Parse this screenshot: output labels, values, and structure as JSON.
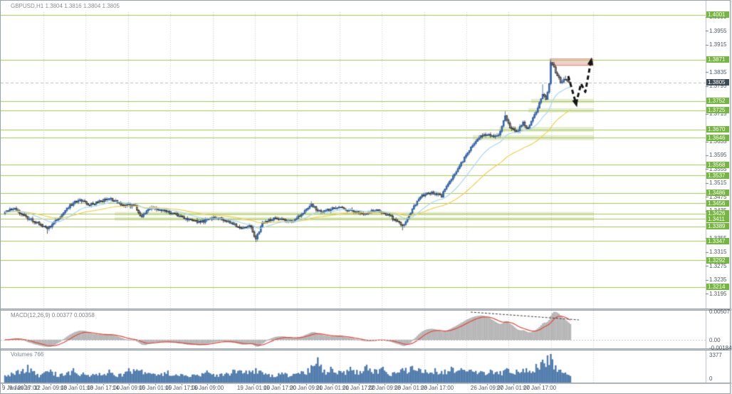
{
  "app": {
    "title_line": "GBPUSD,H1 1.3804 1.3816 1.3804 1.3805"
  },
  "colors": {
    "background": "#ffffff",
    "grid": "#c9cdd3",
    "level_line": "#a6c455",
    "band_fill": "rgba(166,196,85,0.30)",
    "badge_green": "#74b63e",
    "badge_dark": "#3d4a56",
    "axis_text": "#4e5a66",
    "bull": "#3e72bc",
    "bull_edge": "#2c5a9c",
    "bear": "#9a9a9a",
    "bear_edge": "#2e2e2e",
    "ma_fast": "#a9d7f2",
    "ma_slow": "#f0d050",
    "macd_hist": "#c7c7c7",
    "macd_hist_edge": "#8e8e8e",
    "macd_signal": "#e4463c",
    "volume": "#4577ad",
    "volume_edge": "#2f5f94",
    "zone_fill": "rgba(222,141,129,0.42)",
    "zone_edge": "rgba(196,108,96,0.60)",
    "arrow": "#151515",
    "price_dash": "#b6bcc2",
    "axis_sep": "#b8bec4"
  },
  "chart_data": {
    "type": "candlestick",
    "symbol": "GBPUSD",
    "timeframe": "H1",
    "title": "GBPUSD,H1",
    "ohlc": {
      "open": 1.3804,
      "high": 1.3816,
      "low": 1.3804,
      "close": 1.3805
    },
    "current_price": 1.3805,
    "ylim": [
      1.3152,
      1.4013
    ],
    "bar_count": 348,
    "price_path": [
      [
        0,
        1.343
      ],
      [
        6,
        1.3443
      ],
      [
        12,
        1.3418
      ],
      [
        20,
        1.34
      ],
      [
        26,
        1.3382
      ],
      [
        32,
        1.3408
      ],
      [
        40,
        1.345
      ],
      [
        46,
        1.3468
      ],
      [
        52,
        1.3452
      ],
      [
        58,
        1.3462
      ],
      [
        64,
        1.347
      ],
      [
        72,
        1.3452
      ],
      [
        80,
        1.3448
      ],
      [
        84,
        1.3415
      ],
      [
        88,
        1.3443
      ],
      [
        100,
        1.3432
      ],
      [
        112,
        1.341
      ],
      [
        120,
        1.3402
      ],
      [
        130,
        1.3416
      ],
      [
        138,
        1.34
      ],
      [
        146,
        1.3382
      ],
      [
        150,
        1.3395
      ],
      [
        154,
        1.3352
      ],
      [
        158,
        1.3398
      ],
      [
        166,
        1.3415
      ],
      [
        176,
        1.3402
      ],
      [
        188,
        1.345
      ],
      [
        194,
        1.343
      ],
      [
        204,
        1.3445
      ],
      [
        214,
        1.3432
      ],
      [
        222,
        1.3428
      ],
      [
        228,
        1.3438
      ],
      [
        236,
        1.342
      ],
      [
        244,
        1.3392
      ],
      [
        248,
        1.3418
      ],
      [
        252,
        1.3455
      ],
      [
        255,
        1.3477
      ],
      [
        262,
        1.3487
      ],
      [
        268,
        1.3477
      ],
      [
        272,
        1.3515
      ],
      [
        277,
        1.3545
      ],
      [
        282,
        1.3588
      ],
      [
        286,
        1.362
      ],
      [
        291,
        1.3648
      ],
      [
        296,
        1.3655
      ],
      [
        301,
        1.3648
      ],
      [
        304,
        1.3662
      ],
      [
        307,
        1.3712
      ],
      [
        310,
        1.3675
      ],
      [
        314,
        1.3662
      ],
      [
        318,
        1.3688
      ],
      [
        321,
        1.3672
      ],
      [
        324,
        1.37
      ],
      [
        327,
        1.3732
      ],
      [
        330,
        1.3772
      ],
      [
        332,
        1.3758
      ],
      [
        334,
        1.38
      ],
      [
        335,
        1.3865
      ],
      [
        337,
        1.3848
      ],
      [
        339,
        1.3825
      ],
      [
        341,
        1.3808
      ],
      [
        344,
        1.3815
      ],
      [
        347,
        1.3805
      ]
    ],
    "wick_events": [
      {
        "bar": 26,
        "low": 1.3368
      },
      {
        "bar": 154,
        "low": 1.3344
      },
      {
        "bar": 188,
        "high": 1.3462
      },
      {
        "bar": 244,
        "low": 1.3378
      },
      {
        "bar": 307,
        "high": 1.3722
      },
      {
        "bar": 330,
        "high": 1.38
      },
      {
        "bar": 335,
        "high": 1.3871
      },
      {
        "bar": 344,
        "high": 1.3825
      }
    ],
    "levels_badged": [
      1.4001,
      1.3871,
      1.3752,
      1.3725,
      1.367,
      1.3646,
      1.3568,
      1.3537,
      1.3486,
      1.3456,
      1.3426,
      1.3411,
      1.3389,
      1.3347,
      1.3292,
      1.3214
    ],
    "axis_ticks": [
      1.3995,
      1.3955,
      1.3915,
      1.3835,
      1.3795,
      1.3715,
      1.3635,
      1.3595,
      1.3555,
      1.3515,
      1.3475,
      1.3435,
      1.3355,
      1.3315,
      1.3275,
      1.3235,
      1.3195
    ],
    "support_bands": [
      {
        "price": 1.3752,
        "x1": 745,
        "x2": 833,
        "h": 6
      },
      {
        "price": 1.3725,
        "x1": 741,
        "x2": 833,
        "h": 6
      },
      {
        "price": 1.367,
        "x1": 700,
        "x2": 833,
        "h": 7
      },
      {
        "price": 1.3646,
        "x1": 663,
        "x2": 833,
        "h": 7
      },
      {
        "price": 1.3426,
        "x1": 160,
        "x2": 833,
        "h": 5
      },
      {
        "price": 1.3411,
        "x1": 160,
        "x2": 833,
        "h": 5
      }
    ],
    "resistance_zone": {
      "x1": 771,
      "x2": 832,
      "price_top": 1.3874,
      "price_bottom": 1.3853
    },
    "forecast_arrow": [
      [
        797,
        1.3824
      ],
      [
        808,
        1.3744
      ],
      [
        815,
        1.3802
      ],
      [
        821,
        1.3778
      ],
      [
        829,
        1.3868
      ]
    ],
    "ma_periods": {
      "fast": 21,
      "slow": 55
    },
    "time_axis": [
      {
        "x": 2,
        "label": "9 Jan 2026"
      },
      {
        "x": 33,
        "label": "9 Jan 17:00"
      },
      {
        "x": 70,
        "label": "12 Jan 09:00"
      },
      {
        "x": 107,
        "label": "13 Jan 01:00"
      },
      {
        "x": 144,
        "label": "13 Jan 17:00"
      },
      {
        "x": 180,
        "label": "14 Jan 09:00"
      },
      {
        "x": 217,
        "label": "15 Jan 01:00"
      },
      {
        "x": 254,
        "label": "15 Jan 17:00"
      },
      {
        "x": 290,
        "label": "16 Jan 09:00"
      },
      {
        "x": 355,
        "label": "19 Jan 01:00"
      },
      {
        "x": 392,
        "label": "19 Jan 17:00"
      },
      {
        "x": 429,
        "label": "20 Jan 09:00"
      },
      {
        "x": 466,
        "label": "21 Jan 01:00"
      },
      {
        "x": 503,
        "label": "21 Jan 17:00"
      },
      {
        "x": 539,
        "label": "22 Jan 09:00"
      },
      {
        "x": 576,
        "label": "23 Jan 01:00"
      },
      {
        "x": 613,
        "label": "23 Jan 17:00"
      },
      {
        "x": 683,
        "label": "26 Jan 09:00"
      },
      {
        "x": 720,
        "label": "27 Jan 01:00"
      },
      {
        "x": 757,
        "label": "27 Jan 17:00"
      }
    ],
    "macd": {
      "label": "MACD(12,26,9) 0.00377 0.00358",
      "main_value": 0.00377,
      "signal_value": 0.00358,
      "axis_labels": {
        "upper": "0.00507",
        "zero": "0.00",
        "lower": "-0.00184"
      },
      "upper_value": 0.00507,
      "lower_value": -0.00184,
      "divergence_line": {
        "x1": 660,
        "y1": 437,
        "x2": 812,
        "y2": 448
      }
    },
    "volumes": {
      "label": "Volumes 766",
      "current": 766,
      "scale_max": 3377,
      "axis_labels": {
        "max": "3377",
        "min": "0"
      },
      "envelope": [
        [
          0,
          0.25
        ],
        [
          14,
          0.62
        ],
        [
          20,
          0.3
        ],
        [
          28,
          0.45
        ],
        [
          34,
          0.3
        ],
        [
          42,
          0.5
        ],
        [
          48,
          0.35
        ],
        [
          56,
          0.3
        ],
        [
          64,
          0.45
        ],
        [
          70,
          0.3
        ],
        [
          76,
          0.5
        ],
        [
          84,
          0.45
        ],
        [
          92,
          0.3
        ],
        [
          100,
          0.42
        ],
        [
          108,
          0.3
        ],
        [
          116,
          0.28
        ],
        [
          124,
          0.42
        ],
        [
          132,
          0.3
        ],
        [
          140,
          0.45
        ],
        [
          148,
          0.42
        ],
        [
          154,
          0.5
        ],
        [
          162,
          0.3
        ],
        [
          170,
          0.35
        ],
        [
          178,
          0.3
        ],
        [
          186,
          0.5
        ],
        [
          192,
          0.88
        ],
        [
          196,
          0.45
        ],
        [
          200,
          0.55
        ],
        [
          206,
          0.4
        ],
        [
          212,
          0.55
        ],
        [
          218,
          0.4
        ],
        [
          222,
          0.62
        ],
        [
          228,
          0.45
        ],
        [
          232,
          0.55
        ],
        [
          238,
          0.35
        ],
        [
          244,
          0.5
        ],
        [
          250,
          0.58
        ],
        [
          254,
          0.5
        ],
        [
          258,
          0.45
        ],
        [
          264,
          0.5
        ],
        [
          270,
          0.45
        ],
        [
          274,
          0.55
        ],
        [
          280,
          0.5
        ],
        [
          286,
          0.45
        ],
        [
          292,
          0.4
        ],
        [
          298,
          0.45
        ],
        [
          304,
          0.4
        ],
        [
          308,
          0.5
        ],
        [
          314,
          0.45
        ],
        [
          320,
          0.5
        ],
        [
          326,
          0.65
        ],
        [
          330,
          0.8
        ],
        [
          333,
          0.95
        ],
        [
          335,
          1.0
        ],
        [
          338,
          0.6
        ],
        [
          341,
          0.45
        ],
        [
          344,
          0.35
        ],
        [
          347,
          0.227
        ]
      ]
    }
  }
}
